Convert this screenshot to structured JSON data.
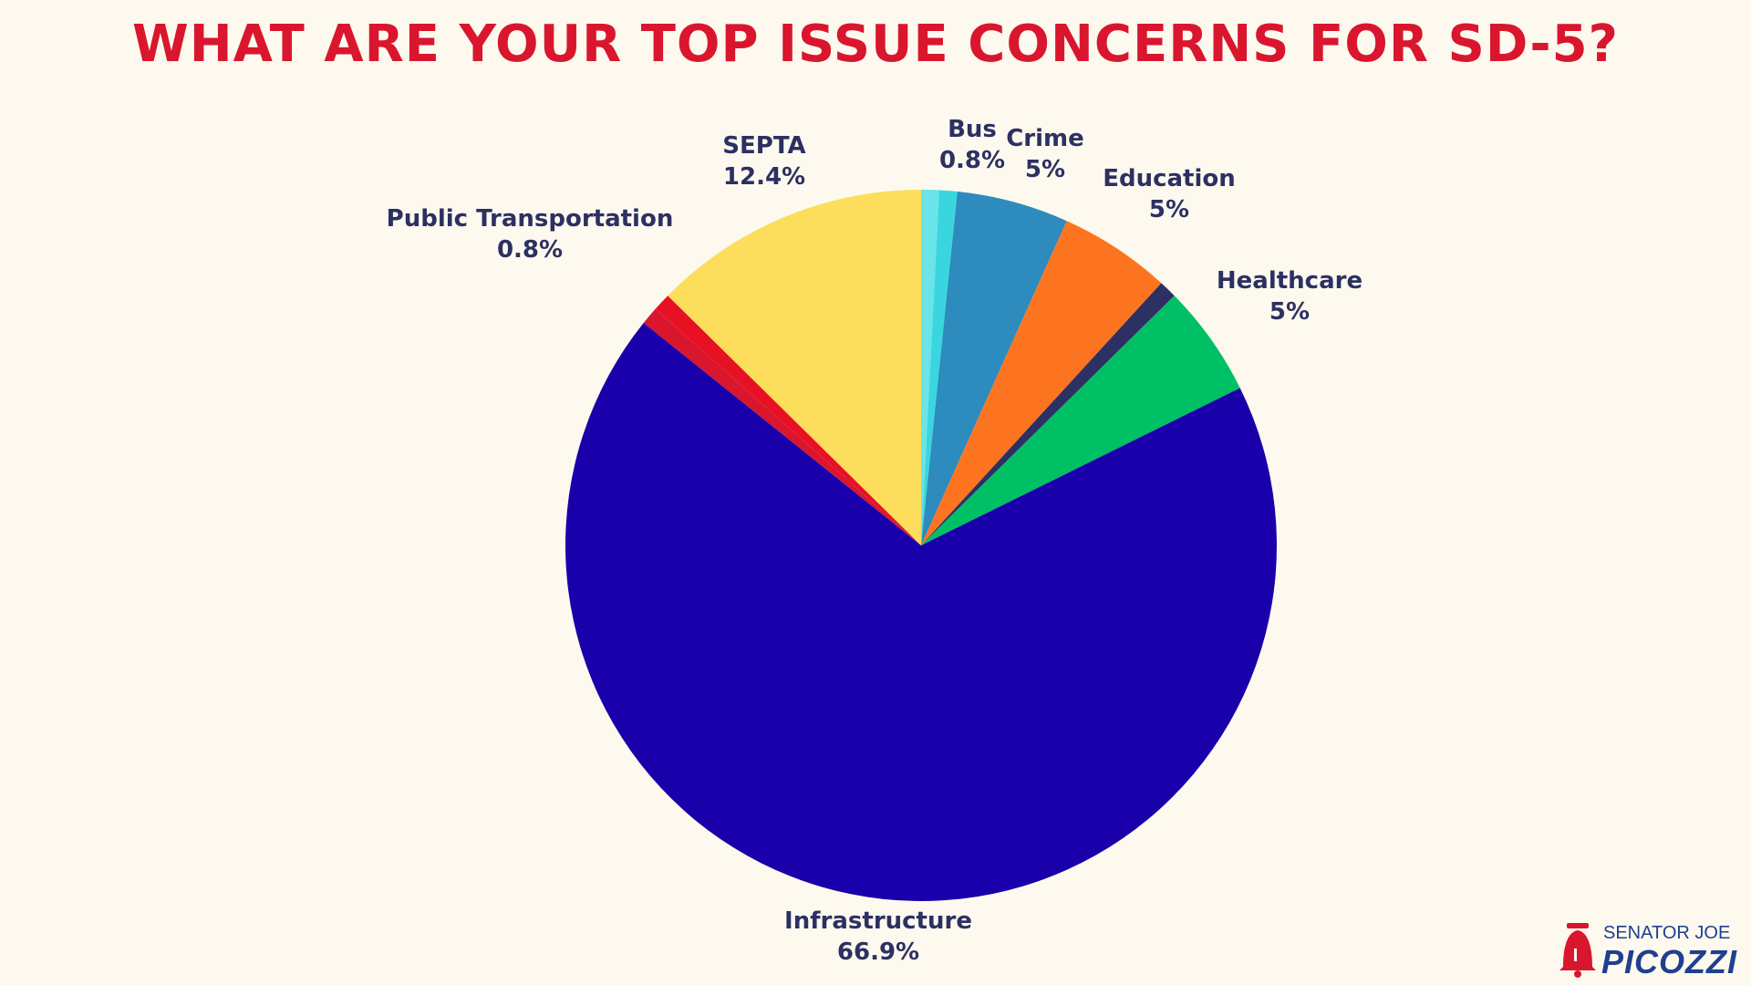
{
  "colors": {
    "background": "#fdf9ee",
    "title": "#d9162e",
    "label": "#2c3062",
    "logo_red": "#d9162e",
    "logo_blue": "#1f3f8f"
  },
  "chart_data": {
    "type": "pie",
    "title": "WHAT ARE YOUR TOP ISSUE CONCERNS FOR SD-5?",
    "start_angle_deg": 0,
    "direction": "clockwise",
    "slices": [
      {
        "name": "",
        "value": 0.8,
        "color": "#69e4e8"
      },
      {
        "name": "Bus",
        "value": 0.8,
        "label": "0.8%",
        "color": "#3ad6e0"
      },
      {
        "name": "Crime",
        "value": 5,
        "label": "5%",
        "color": "#2d8bbd"
      },
      {
        "name": "Education",
        "value": 5,
        "label": "5%",
        "color": "#fd7420"
      },
      {
        "name": "",
        "value": 0.8,
        "color": "#2c3062"
      },
      {
        "name": "Healthcare",
        "value": 5,
        "label": "5%",
        "color": "#00c065"
      },
      {
        "name": "Infrastructure",
        "value": 66.9,
        "label": "66.9%",
        "color": "#1a00ab"
      },
      {
        "name": "",
        "value": 0.8,
        "color": "#d9162e"
      },
      {
        "name": "Public Transportation",
        "value": 0.8,
        "label": "0.8%",
        "color": "#e81123"
      },
      {
        "name": "SEPTA",
        "value": 12.4,
        "label": "12.4%",
        "color": "#fddd5c"
      }
    ],
    "legend": "none"
  },
  "logo": {
    "top_text": "SENATOR JOE",
    "name_text": "PICOZZI"
  }
}
